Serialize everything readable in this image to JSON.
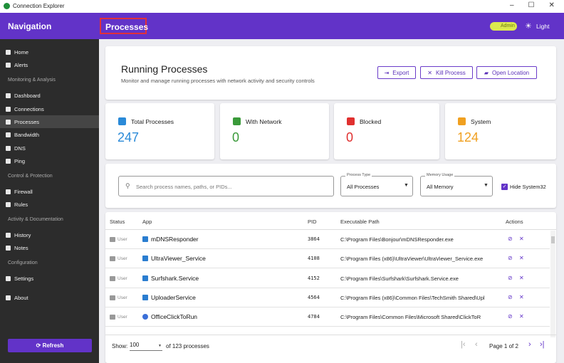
{
  "window": {
    "title": "Connection Explorer"
  },
  "sidebar": {
    "title": "Navigation",
    "groups": [
      {
        "items": [
          "Home",
          "Alerts"
        ]
      },
      {
        "heading": "Monitoring & Analysis",
        "items": [
          "Dashboard",
          "Connections",
          "Processes",
          "Bandwidth",
          "DNS",
          "Ping"
        ]
      },
      {
        "heading": "Control & Protection",
        "items": [
          "Firewall",
          "Rules"
        ]
      },
      {
        "heading": "Activity & Documentation",
        "items": [
          "History",
          "Notes"
        ]
      },
      {
        "heading": "Configuration",
        "items": [
          "Settings"
        ]
      },
      {
        "items": [
          "About"
        ]
      }
    ],
    "refresh": "Refresh"
  },
  "header": {
    "title": "Processes",
    "role": "Admin",
    "theme": "Light"
  },
  "overview": {
    "title": "Running Processes",
    "subtitle": "Monitor and manage running processes with network activity and security controls",
    "actions": [
      "Export",
      "Kill Process",
      "Open Location"
    ]
  },
  "stats": [
    {
      "label": "Total Processes",
      "value": 247
    },
    {
      "label": "With Network",
      "value": 0
    },
    {
      "label": "Blocked",
      "value": 0
    },
    {
      "label": "System",
      "value": 124
    }
  ],
  "filters": {
    "search_placeholder": "Search process names, paths, or PIDs...",
    "process_type": {
      "label": "Process Type",
      "value": "All Processes"
    },
    "memory_usage": {
      "label": "Memory Usage",
      "value": "All Memory"
    },
    "hide_system32": "Hide System32"
  },
  "table": {
    "columns": [
      "Status",
      "App",
      "PID",
      "Executable Path",
      "Actions"
    ],
    "rows": [
      [
        "User",
        "mDNSResponder",
        3864,
        "C:\\Program Files\\Bonjour\\mDNSResponder.exe"
      ],
      [
        "User",
        "UltraViewer_Service",
        4108,
        "C:\\Program Files (x86)\\UltraViewer\\UltraViewer_Service.exe"
      ],
      [
        "User",
        "Surfshark.Service",
        4152,
        "C:\\Program Files\\Surfshark\\Surfshark.Service.exe"
      ],
      [
        "User",
        "UploaderService",
        4564,
        "C:\\Program Files (x86)\\Common Files\\TechSmith Shared\\Upl"
      ],
      [
        "User",
        "OfficeClickToRun",
        4784,
        "C:\\Program Files\\Common Files\\Microsoft Shared\\ClickToR"
      ]
    ]
  },
  "footer": {
    "show_label": "Show:",
    "page_size": 100,
    "count": "of 123 processes",
    "page": "Page 1 of 2"
  }
}
